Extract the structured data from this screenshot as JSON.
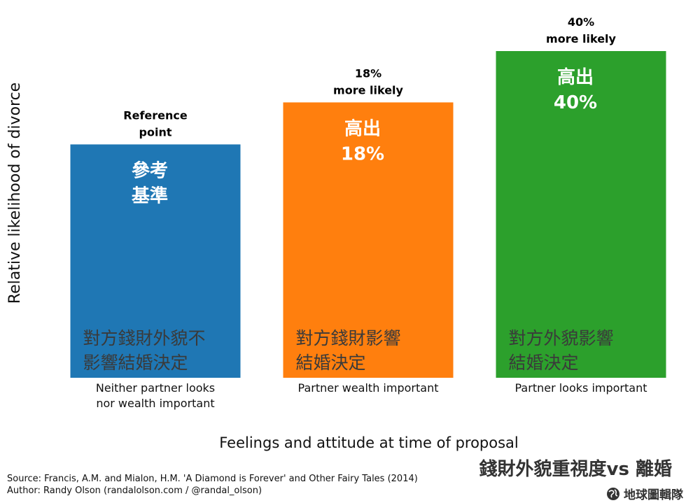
{
  "chart_data": {
    "type": "bar",
    "categories": [
      [
        "Neither partner looks",
        "nor wealth important"
      ],
      [
        "Partner wealth important"
      ],
      [
        "Partner looks important"
      ]
    ],
    "values": [
      1.0,
      1.18,
      1.4
    ],
    "colors": [
      "#1f77b4",
      "#ff7f0e",
      "#2ca02c"
    ],
    "top_labels": [
      [
        "Reference",
        "point"
      ],
      [
        "18%",
        "more likely"
      ],
      [
        "40%",
        "more likely"
      ]
    ],
    "inner_top_labels": [
      [
        "參考",
        "基準"
      ],
      [
        "高出",
        "18%"
      ],
      [
        "高出",
        "40%"
      ]
    ],
    "inner_bottom_labels": [
      [
        "對方錢財外貌不",
        "影響結婚決定"
      ],
      [
        "對方錢財影響",
        "結婚決定"
      ],
      [
        "對方外貌影響",
        "結婚決定"
      ]
    ],
    "ylabel": "Relative likelihood of divorce",
    "xlabel": "Feelings and attitude at time of proposal",
    "ylim": [
      0,
      1.4
    ],
    "grid": false,
    "legend": "none"
  },
  "footer": {
    "source": "Source: Francis, A.M. and Mialon, H.M. 'A Diamond is Forever' and Other Fairy Tales (2014)",
    "author": "Author: Randy Olson (randalolson.com / @randal_olson)",
    "cn_title": "錢財外貌重視度vs 離婚",
    "brand": "地球圖輯隊"
  }
}
